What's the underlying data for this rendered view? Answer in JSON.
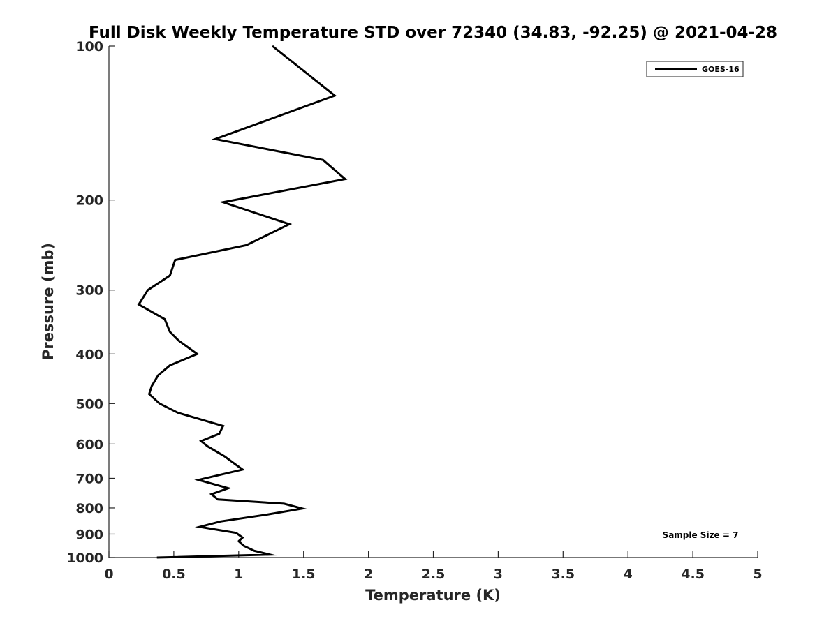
{
  "chart_data": {
    "type": "line",
    "title": "Full Disk Weekly Temperature STD over 72340 (34.83, -92.25) @ 2021-04-28",
    "xlabel": "Temperature (K)",
    "ylabel": "Pressure (mb)",
    "xlim": [
      0,
      5
    ],
    "ylim": [
      100,
      1000
    ],
    "y_scale": "log",
    "y_reversed": true,
    "grid": false,
    "legend_position": "top-right",
    "x_ticks": [
      "0",
      "0.5",
      "1",
      "1.5",
      "2",
      "2.5",
      "3",
      "3.5",
      "4",
      "4.5",
      "5"
    ],
    "y_ticks": [
      "100",
      "200",
      "300",
      "400",
      "500",
      "600",
      "700",
      "800",
      "900",
      "1000"
    ],
    "annotation": "Sample Size = 7",
    "series": [
      {
        "name": "GOES-16",
        "color": "#000000",
        "points": [
          [
            1.26,
            100
          ],
          [
            1.74,
            125
          ],
          [
            0.82,
            152
          ],
          [
            1.65,
            167
          ],
          [
            1.82,
            182
          ],
          [
            0.88,
            202
          ],
          [
            1.39,
            223
          ],
          [
            1.06,
            245
          ],
          [
            0.51,
            262
          ],
          [
            0.47,
            281
          ],
          [
            0.3,
            300
          ],
          [
            0.23,
            320
          ],
          [
            0.43,
            342
          ],
          [
            0.47,
            362
          ],
          [
            0.54,
            377
          ],
          [
            0.68,
            400
          ],
          [
            0.47,
            421
          ],
          [
            0.38,
            440
          ],
          [
            0.33,
            462
          ],
          [
            0.31,
            479
          ],
          [
            0.39,
            500
          ],
          [
            0.53,
            521
          ],
          [
            0.88,
            553
          ],
          [
            0.85,
            573
          ],
          [
            0.71,
            592
          ],
          [
            0.76,
            606
          ],
          [
            0.89,
            634
          ],
          [
            0.98,
            659
          ],
          [
            1.03,
            673
          ],
          [
            0.69,
            705
          ],
          [
            0.92,
            732
          ],
          [
            0.79,
            752
          ],
          [
            0.84,
            770
          ],
          [
            1.35,
            785
          ],
          [
            1.49,
            802
          ],
          [
            1.22,
            824
          ],
          [
            0.86,
            850
          ],
          [
            0.7,
            871
          ],
          [
            0.98,
            895
          ],
          [
            1.03,
            914
          ],
          [
            1.0,
            929
          ],
          [
            1.04,
            949
          ],
          [
            1.12,
            970
          ],
          [
            1.24,
            987
          ],
          [
            0.37,
            1000
          ]
        ]
      }
    ]
  }
}
